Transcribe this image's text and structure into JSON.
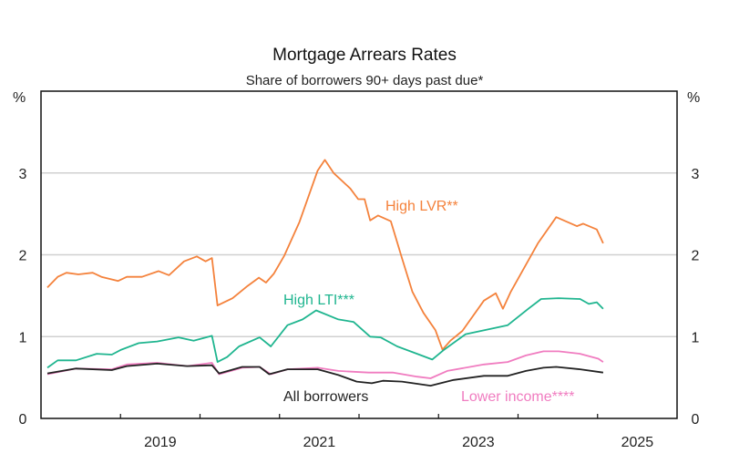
{
  "chart_data": {
    "type": "line",
    "title": "Mortgage Arrears Rates",
    "subtitle": "Share of borrowers 90+ days past due*",
    "ylabel_left": "%",
    "ylabel_right": "%",
    "ylim": [
      0,
      4
    ],
    "yticks": [
      "0",
      "1",
      "2",
      "3"
    ],
    "xlim": [
      2018,
      2026
    ],
    "xticks": [
      2019,
      2020,
      2021,
      2022,
      2023,
      2024,
      2025
    ],
    "xtick_labels": [
      {
        "label": "2019",
        "year": 2019
      },
      {
        "label": "2021",
        "year": 2021
      },
      {
        "label": "2023",
        "year": 2023
      },
      {
        "label": "2025",
        "year": 2025
      }
    ],
    "grid": true,
    "series": [
      {
        "name": "High LVR**",
        "color": "#f4823c",
        "x": [
          2018.08,
          2018.21,
          2018.32,
          2018.47,
          2018.65,
          2018.76,
          2018.97,
          2019.08,
          2019.27,
          2019.48,
          2019.61,
          2019.8,
          2019.96,
          2020.07,
          2020.15,
          2020.22,
          2020.41,
          2020.6,
          2020.74,
          2020.83,
          2020.93,
          2021.06,
          2021.25,
          2021.48,
          2021.57,
          2021.68,
          2021.89,
          2021.99,
          2022.07,
          2022.14,
          2022.24,
          2022.4,
          2022.54,
          2022.67,
          2022.81,
          2022.96,
          2023.05,
          2023.15,
          2023.3,
          2023.57,
          2023.72,
          2023.81,
          2023.91,
          2024.25,
          2024.48,
          2024.74,
          2024.82,
          2024.99,
          2025.07
        ],
        "y": [
          1.6,
          1.73,
          1.78,
          1.76,
          1.78,
          1.73,
          1.68,
          1.73,
          1.73,
          1.8,
          1.75,
          1.92,
          1.98,
          1.92,
          1.96,
          1.38,
          1.47,
          1.62,
          1.72,
          1.66,
          1.77,
          1.99,
          2.4,
          3.03,
          3.16,
          3.0,
          2.81,
          2.68,
          2.68,
          2.42,
          2.48,
          2.41,
          1.96,
          1.55,
          1.29,
          1.08,
          0.84,
          0.95,
          1.07,
          1.44,
          1.53,
          1.34,
          1.55,
          2.14,
          2.46,
          2.35,
          2.38,
          2.31,
          2.14
        ]
      },
      {
        "name": "High LTI***",
        "color": "#1fb58f",
        "x": [
          2018.08,
          2018.21,
          2018.44,
          2018.7,
          2018.89,
          2019.01,
          2019.23,
          2019.46,
          2019.73,
          2019.92,
          2020.15,
          2020.22,
          2020.34,
          2020.49,
          2020.75,
          2020.89,
          2021.1,
          2021.29,
          2021.46,
          2021.74,
          2021.93,
          2022.14,
          2022.27,
          2022.48,
          2022.73,
          2022.92,
          2023.07,
          2023.34,
          2023.87,
          2024.13,
          2024.29,
          2024.51,
          2024.78,
          2024.89,
          2024.99,
          2025.07
        ],
        "y": [
          0.62,
          0.71,
          0.71,
          0.79,
          0.78,
          0.84,
          0.92,
          0.94,
          0.99,
          0.95,
          1.01,
          0.69,
          0.75,
          0.88,
          0.99,
          0.88,
          1.14,
          1.21,
          1.32,
          1.21,
          1.18,
          1.0,
          0.99,
          0.88,
          0.79,
          0.72,
          0.84,
          1.03,
          1.14,
          1.34,
          1.46,
          1.47,
          1.46,
          1.4,
          1.42,
          1.34
        ]
      },
      {
        "name": "Lower income****",
        "color": "#f07cc0",
        "x": [
          2018.08,
          2018.44,
          2018.89,
          2019.08,
          2019.46,
          2019.84,
          2020.15,
          2020.24,
          2020.53,
          2020.75,
          2020.89,
          2021.1,
          2021.48,
          2021.74,
          2022.12,
          2022.43,
          2022.73,
          2022.9,
          2023.11,
          2023.57,
          2023.87,
          2024.1,
          2024.32,
          2024.51,
          2024.78,
          2025.01,
          2025.07
        ],
        "y": [
          0.54,
          0.61,
          0.6,
          0.66,
          0.68,
          0.64,
          0.68,
          0.54,
          0.62,
          0.63,
          0.54,
          0.6,
          0.62,
          0.58,
          0.56,
          0.56,
          0.51,
          0.49,
          0.58,
          0.66,
          0.69,
          0.77,
          0.82,
          0.82,
          0.79,
          0.73,
          0.69
        ]
      },
      {
        "name": "All borrowers",
        "color": "#222222",
        "x": [
          2018.08,
          2018.44,
          2018.89,
          2019.08,
          2019.46,
          2019.84,
          2020.15,
          2020.24,
          2020.53,
          2020.75,
          2020.87,
          2021.1,
          2021.48,
          2021.74,
          2021.97,
          2022.16,
          2022.3,
          2022.54,
          2022.9,
          2023.19,
          2023.57,
          2023.87,
          2024.1,
          2024.32,
          2024.48,
          2024.78,
          2025.07
        ],
        "y": [
          0.55,
          0.61,
          0.59,
          0.64,
          0.67,
          0.64,
          0.65,
          0.55,
          0.63,
          0.63,
          0.54,
          0.6,
          0.6,
          0.53,
          0.45,
          0.43,
          0.46,
          0.45,
          0.4,
          0.47,
          0.52,
          0.52,
          0.58,
          0.62,
          0.63,
          0.6,
          0.56
        ]
      }
    ]
  }
}
